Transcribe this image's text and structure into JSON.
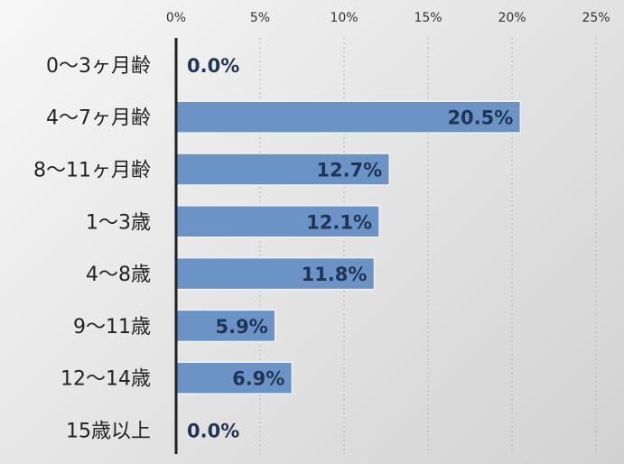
{
  "chart_data": {
    "type": "bar",
    "orientation": "horizontal",
    "categories": [
      "0〜3ヶ月齢",
      "4〜7ヶ月齢",
      "8〜11ヶ月齢",
      "1〜3歳",
      "4〜8歳",
      "9〜11歳",
      "12〜14歳",
      "15歳以上"
    ],
    "values": [
      0.0,
      20.5,
      12.7,
      12.1,
      11.8,
      5.9,
      6.9,
      0.0
    ],
    "data_labels": [
      "0.0%",
      "20.5%",
      "12.7%",
      "12.1%",
      "11.8%",
      "5.9%",
      "6.9%",
      "0.0%"
    ],
    "xlim": [
      0,
      25
    ],
    "ticks": [
      0,
      5,
      10,
      15,
      20,
      25
    ],
    "tick_labels": [
      "0%",
      "5%",
      "10%",
      "15%",
      "20%",
      "25%"
    ],
    "axis_position": "top",
    "grid": true,
    "legend": "none",
    "title": "",
    "xlabel": "",
    "ylabel": "",
    "colors": {
      "bar": "#6b93c6",
      "bar_border": "#eef3fa",
      "label": "#1f3556",
      "grid": "#b8b8b8",
      "axis": "#222222"
    }
  }
}
